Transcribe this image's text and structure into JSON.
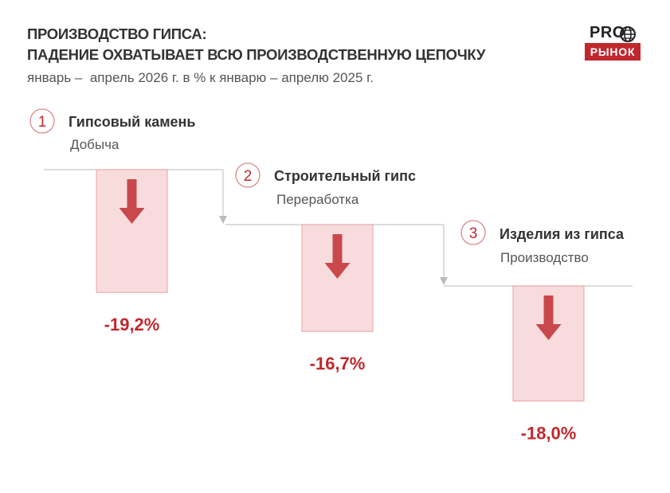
{
  "header": {
    "title_line1": "ПРОИЗВОДСТВО ГИПСА:",
    "title_line2": "ПАДЕНИЕ ОХВАТЫВАЕТ ВСЮ ПРОИЗВОДСТВЕННУЮ ЦЕПОЧКУ",
    "subtitle": "январь –  апрель 2026 г. в % к январю – апрелю 2025 г."
  },
  "logo": {
    "top": "PRO",
    "bottom": "РЫНОК"
  },
  "colors": {
    "accent": "#c0282d",
    "bar_fill": "#f8dcdd",
    "bar_stroke": "#e9a1a4",
    "arrow": "#c9484c",
    "line": "#c8c8c8"
  },
  "chart_data": {
    "type": "bar",
    "categories": [
      "Гипсовый камень",
      "Строительный гипс",
      "Изделия из гипса"
    ],
    "stage_numbers": [
      "1",
      "2",
      "3"
    ],
    "stage_types": [
      "Добыча",
      "Переработка",
      "Производство"
    ],
    "values": [
      -19.2,
      -16.7,
      -18.0
    ],
    "value_labels": [
      "-19,2%",
      "-16,7%",
      "-18,0%"
    ],
    "unit": "%"
  }
}
